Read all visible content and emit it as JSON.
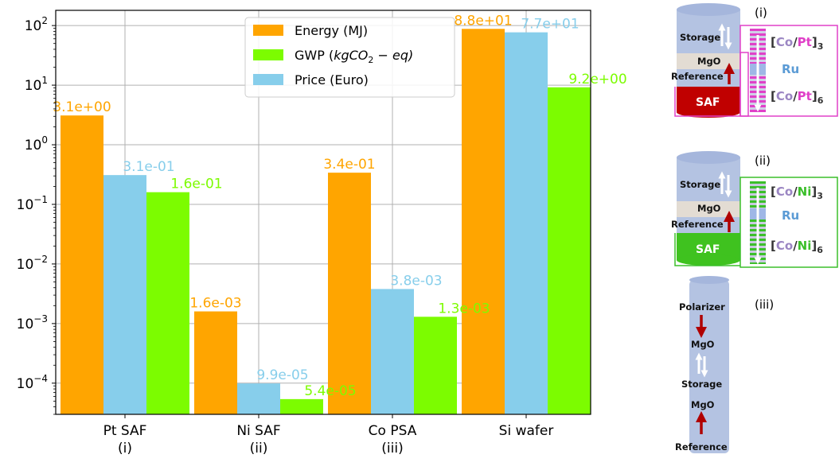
{
  "chart_data": {
    "type": "bar",
    "yscale": "log",
    "ylim": [
      3e-05,
      180
    ],
    "grid": true,
    "legend_position": "top-center",
    "categories": [
      "Pt SAF",
      "Ni SAF",
      "Co PSA",
      "Si wafer"
    ],
    "category_sublabels": [
      "(i)",
      "(ii)",
      "(iii)",
      ""
    ],
    "yticks": [
      0.0001,
      0.001,
      0.01,
      0.1,
      1,
      10,
      100
    ],
    "ytick_labels": [
      {
        "base": "10",
        "exp": "−4"
      },
      {
        "base": "10",
        "exp": "−3"
      },
      {
        "base": "10",
        "exp": "−2"
      },
      {
        "base": "10",
        "exp": "−1"
      },
      {
        "base": "10",
        "exp": "0"
      },
      {
        "base": "10",
        "exp": "1"
      },
      {
        "base": "10",
        "exp": "2"
      }
    ],
    "series": [
      {
        "name": "Energy (MJ)",
        "color": "#ffa500",
        "values": [
          3.1,
          0.0016,
          0.34,
          88
        ],
        "labels": [
          "3.1e+00",
          "1.6e-03",
          "3.4e-01",
          "8.8e+01"
        ]
      },
      {
        "name": "Price (Euro)",
        "color": "#87ceeb",
        "values": [
          0.31,
          9.9e-05,
          0.0038,
          77
        ],
        "labels": [
          "3.1e-01",
          "9.9e-05",
          "3.8e-03",
          "7.7e+01"
        ]
      },
      {
        "name": "GWP",
        "color": "#7cfc00",
        "values": [
          0.16,
          5.4e-05,
          0.0013,
          9.2
        ],
        "labels": [
          "1.6e-01",
          "5.4e-05",
          "1.3e-03",
          "9.2e+00"
        ]
      }
    ],
    "legend": {
      "energy": "Energy (MJ)",
      "gwp_prefix": "GWP (",
      "gwp_unit": "kgCO",
      "gwp_sub": "2",
      "gwp_suffix": " − eq)",
      "price": "Price (Euro)"
    }
  },
  "schematics": {
    "i": {
      "label": "(i)",
      "storage": "Storage",
      "mgo": "MgO",
      "reference": "Reference",
      "saf": "SAF",
      "ml_top": {
        "a": "Co",
        "sep": "/",
        "b": "Pt",
        "sub": "3"
      },
      "ml_mid": "Ru",
      "ml_bot": {
        "a": "Co",
        "sep": "/",
        "b": "Pt",
        "sub": "6"
      }
    },
    "ii": {
      "label": "(ii)",
      "storage": "Storage",
      "mgo": "MgO",
      "reference": "Reference",
      "saf": "SAF",
      "ml_top": {
        "a": "Co",
        "sep": "/",
        "b": "Ni",
        "sub": "3"
      },
      "ml_mid": "Ru",
      "ml_bot": {
        "a": "Co",
        "sep": "/",
        "b": "Ni",
        "sub": "6"
      }
    },
    "iii": {
      "label": "(iii)",
      "polarizer": "Polarizer",
      "mgo1": "MgO",
      "storage": "Storage",
      "mgo2": "MgO",
      "reference": "Reference"
    }
  }
}
